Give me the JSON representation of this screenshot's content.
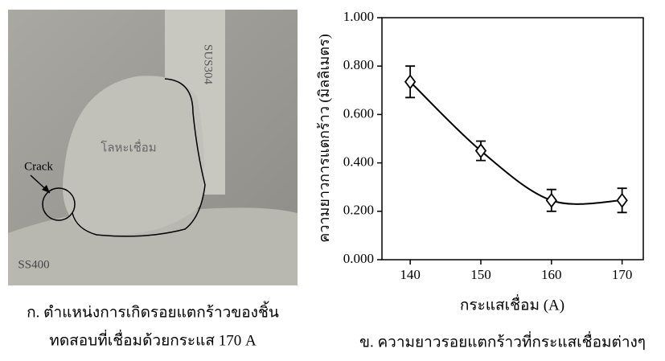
{
  "photo": {
    "labels": [
      "SUS304",
      "โลหะเชื่อม",
      "Crack",
      "SS400"
    ],
    "caption": [
      "ก. ตำแหน่งการเกิดรอยแตกร้าวของชิ้น",
      "ทดสอบที่เชื่อมด้วยกระแส 170 A"
    ]
  },
  "chart_data": {
    "type": "line",
    "caption": "ข. ความยาวรอยแตกร้าวที่กระแสเชื่อมต่างๆ",
    "x_label": "กระแสเชื่อม (A)",
    "y_label": "ความยาวการแตกร้าว (มิลลิเมตร)",
    "x": [
      140,
      150,
      160,
      170
    ],
    "series": [
      {
        "values": [
          0.735,
          0.45,
          0.245,
          0.245
        ],
        "errors": [
          0.065,
          0.04,
          0.045,
          0.05
        ],
        "color": "#000000"
      }
    ],
    "xlim": [
      136,
      173
    ],
    "xticks": [
      140,
      150,
      160,
      170
    ],
    "ylim": [
      0,
      1
    ],
    "yticks": [
      {
        "value": 0,
        "label": "0.000"
      },
      {
        "value": 0.2,
        "label": "0.200"
      },
      {
        "value": 0.4,
        "label": "0.400"
      },
      {
        "value": 0.6,
        "label": "0.600"
      },
      {
        "value": 0.8,
        "label": "0.800"
      },
      {
        "value": 1,
        "label": "1.000"
      }
    ],
    "marker": "diamond",
    "smooth": true
  }
}
